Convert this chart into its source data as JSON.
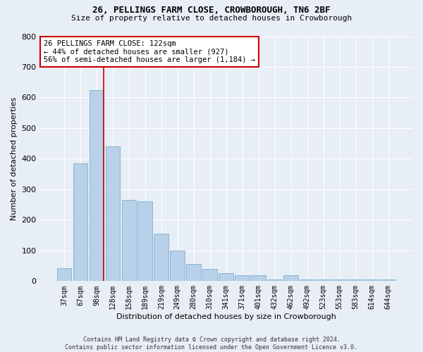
{
  "title": "26, PELLINGS FARM CLOSE, CROWBOROUGH, TN6 2BF",
  "subtitle": "Size of property relative to detached houses in Crowborough",
  "xlabel": "Distribution of detached houses by size in Crowborough",
  "ylabel": "Number of detached properties",
  "footnote": "Contains HM Land Registry data © Crown copyright and database right 2024.\nContains public sector information licensed under the Open Government Licence v3.0.",
  "bar_color": "#b8d0e8",
  "bar_edge_color": "#7aafd4",
  "background_color": "#e8eef5",
  "grid_color": "#ffffff",
  "vline_color": "#cc0000",
  "annotation_text": "26 PELLINGS FARM CLOSE: 122sqm\n← 44% of detached houses are smaller (927)\n56% of semi-detached houses are larger (1,184) →",
  "annotation_box_color": "#ffffff",
  "annotation_box_edge": "#cc0000",
  "categories": [
    "37sqm",
    "67sqm",
    "98sqm",
    "128sqm",
    "158sqm",
    "189sqm",
    "219sqm",
    "249sqm",
    "280sqm",
    "310sqm",
    "341sqm",
    "371sqm",
    "401sqm",
    "432sqm",
    "462sqm",
    "492sqm",
    "523sqm",
    "553sqm",
    "583sqm",
    "614sqm",
    "644sqm"
  ],
  "values": [
    42,
    385,
    625,
    440,
    265,
    260,
    155,
    100,
    55,
    40,
    27,
    20,
    20,
    5,
    20,
    5,
    5,
    5,
    5,
    5,
    5
  ],
  "ylim": [
    0,
    800
  ],
  "yticks": [
    0,
    100,
    200,
    300,
    400,
    500,
    600,
    700,
    800
  ]
}
